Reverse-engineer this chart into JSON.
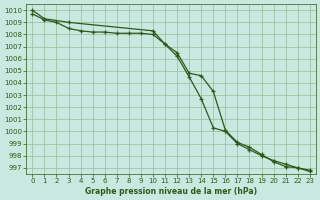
{
  "line1_x": [
    0,
    1,
    2,
    3,
    4,
    5,
    6,
    7,
    8,
    9,
    10,
    11,
    12,
    13,
    14,
    15,
    16,
    17,
    18,
    19,
    20,
    21,
    22,
    23
  ],
  "line1_y": [
    1009.7,
    1009.2,
    1009.0,
    1008.5,
    1008.3,
    1008.2,
    1008.2,
    1008.1,
    1008.1,
    1008.1,
    1008.0,
    1007.2,
    1006.5,
    1004.8,
    1004.6,
    1003.3,
    1000.1,
    999.1,
    998.7,
    998.1,
    997.5,
    997.1,
    997.0,
    996.8
  ],
  "line2_x": [
    0,
    1,
    3,
    10,
    11,
    12,
    13,
    14,
    15,
    16,
    17,
    18,
    19,
    20,
    21,
    22,
    23
  ],
  "line2_y": [
    1010.0,
    1009.3,
    1009.0,
    1008.3,
    1007.2,
    1006.2,
    1004.5,
    1002.7,
    1000.3,
    1000.0,
    999.0,
    998.5,
    998.0,
    997.6,
    997.3,
    997.0,
    996.7
  ],
  "line_color": "#2d5a1b",
  "bg_color": "#c8e8e0",
  "grid_color": "#99bb99",
  "xlabel": "Graphe pression niveau de la mer (hPa)",
  "ylim": [
    996.5,
    1010.5
  ],
  "xlim": [
    -0.5,
    23.5
  ],
  "yticks": [
    997,
    998,
    999,
    1000,
    1001,
    1002,
    1003,
    1004,
    1005,
    1006,
    1007,
    1008,
    1009,
    1010
  ],
  "xticks": [
    0,
    1,
    2,
    3,
    4,
    5,
    6,
    7,
    8,
    9,
    10,
    11,
    12,
    13,
    14,
    15,
    16,
    17,
    18,
    19,
    20,
    21,
    22,
    23
  ]
}
